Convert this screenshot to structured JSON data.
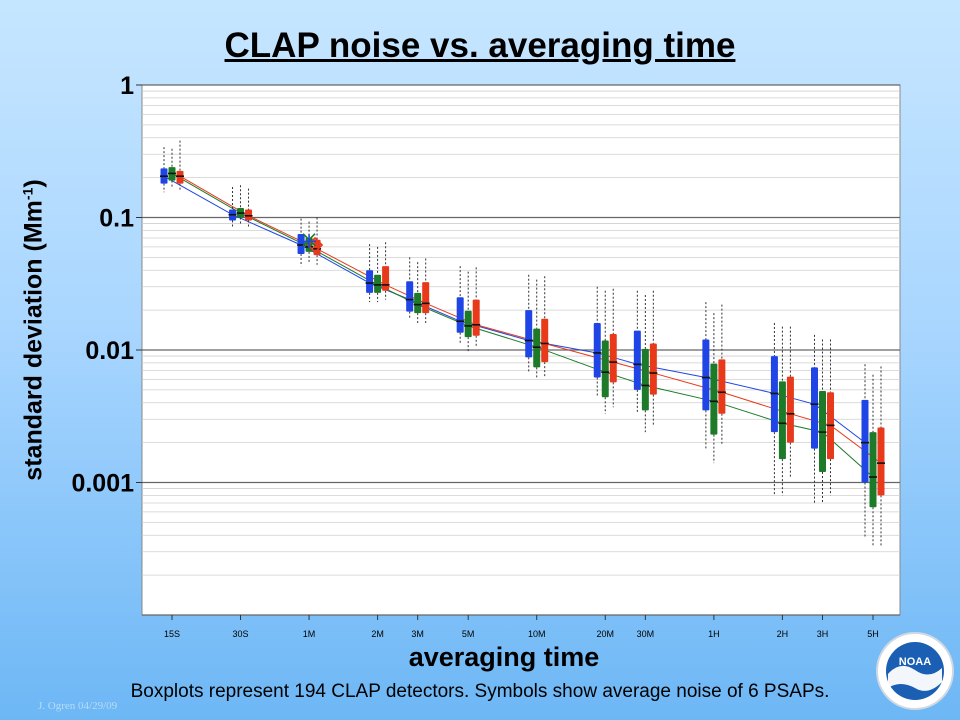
{
  "title": "CLAP noise vs. averaging time",
  "xlabel": "averaging time",
  "ylabel_main": "standard deviation (Mm",
  "ylabel_sup": "-1",
  "ylabel_end": ")",
  "caption": "Boxplots represent 194 CLAP detectors.  Symbols show average noise of 6 PSAPs.",
  "credit": "J. Ogren  04/29/09",
  "logo_text": "NOAA",
  "colors": {
    "blue": "#1f45e6",
    "green": "#1c7a28",
    "red": "#e8391b",
    "background_top": "#c6e6ff",
    "background_bottom": "#6db7f5",
    "plot_bg": "#ffffff"
  },
  "chart_data": {
    "type": "boxplot",
    "y_scale": "log",
    "ylim": [
      0.0001,
      1
    ],
    "y_ticks": [
      {
        "value": 1,
        "label": "1"
      },
      {
        "value": 0.1,
        "label": "0.1"
      },
      {
        "value": 0.01,
        "label": "0.01"
      },
      {
        "value": 0.001,
        "label": "0.001"
      }
    ],
    "grid": true,
    "categories": [
      {
        "label": "15S",
        "seconds": 15
      },
      {
        "label": "30S",
        "seconds": 30
      },
      {
        "label": "1M",
        "seconds": 60
      },
      {
        "label": "2M",
        "seconds": 120
      },
      {
        "label": "3M",
        "seconds": 180
      },
      {
        "label": "5M",
        "seconds": 300
      },
      {
        "label": "10M",
        "seconds": 600
      },
      {
        "label": "20M",
        "seconds": 1200
      },
      {
        "label": "30M",
        "seconds": 1800
      },
      {
        "label": "1H",
        "seconds": 3600
      },
      {
        "label": "2H",
        "seconds": 7200
      },
      {
        "label": "3H",
        "seconds": 10800
      },
      {
        "label": "5H",
        "seconds": 18000
      }
    ],
    "series": [
      {
        "color": "blue",
        "boxes": [
          {
            "lo": 0.155,
            "q1": 0.18,
            "med": 0.205,
            "q3": 0.235,
            "hi": 0.34
          },
          {
            "lo": 0.085,
            "q1": 0.095,
            "med": 0.105,
            "q3": 0.115,
            "hi": 0.17
          },
          {
            "lo": 0.043,
            "q1": 0.053,
            "med": 0.062,
            "q3": 0.075,
            "hi": 0.098
          },
          {
            "lo": 0.023,
            "q1": 0.027,
            "med": 0.032,
            "q3": 0.04,
            "hi": 0.063
          },
          {
            "lo": 0.017,
            "q1": 0.0195,
            "med": 0.024,
            "q3": 0.033,
            "hi": 0.05
          },
          {
            "lo": 0.011,
            "q1": 0.0135,
            "med": 0.0165,
            "q3": 0.025,
            "hi": 0.043
          },
          {
            "lo": 0.0068,
            "q1": 0.0088,
            "med": 0.0118,
            "q3": 0.02,
            "hi": 0.037
          },
          {
            "lo": 0.0045,
            "q1": 0.0062,
            "med": 0.0095,
            "q3": 0.016,
            "hi": 0.03
          },
          {
            "lo": 0.0033,
            "q1": 0.005,
            "med": 0.0078,
            "q3": 0.014,
            "hi": 0.028
          },
          {
            "lo": 0.0018,
            "q1": 0.0035,
            "med": 0.0062,
            "q3": 0.012,
            "hi": 0.023
          },
          {
            "lo": 0.0008,
            "q1": 0.0024,
            "med": 0.0047,
            "q3": 0.009,
            "hi": 0.016
          },
          {
            "lo": 0.0007,
            "q1": 0.0018,
            "med": 0.0039,
            "q3": 0.0074,
            "hi": 0.013
          },
          {
            "lo": 0.00038,
            "q1": 0.001,
            "med": 0.002,
            "q3": 0.0042,
            "hi": 0.0078
          }
        ]
      },
      {
        "color": "green",
        "boxes": [
          {
            "lo": 0.165,
            "q1": 0.19,
            "med": 0.215,
            "q3": 0.24,
            "hi": 0.33
          },
          {
            "lo": 0.087,
            "q1": 0.1,
            "med": 0.108,
            "q3": 0.118,
            "hi": 0.175
          },
          {
            "lo": 0.045,
            "q1": 0.055,
            "med": 0.06,
            "q3": 0.07,
            "hi": 0.093
          },
          {
            "lo": 0.023,
            "q1": 0.027,
            "med": 0.031,
            "q3": 0.037,
            "hi": 0.06
          },
          {
            "lo": 0.016,
            "q1": 0.019,
            "med": 0.022,
            "q3": 0.027,
            "hi": 0.046
          },
          {
            "lo": 0.0098,
            "q1": 0.0125,
            "med": 0.0152,
            "q3": 0.0198,
            "hi": 0.039
          },
          {
            "lo": 0.006,
            "q1": 0.0074,
            "med": 0.0105,
            "q3": 0.0145,
            "hi": 0.034
          },
          {
            "lo": 0.0033,
            "q1": 0.0044,
            "med": 0.0068,
            "q3": 0.0118,
            "hi": 0.028
          },
          {
            "lo": 0.0024,
            "q1": 0.0035,
            "med": 0.0054,
            "q3": 0.0102,
            "hi": 0.026
          },
          {
            "lo": 0.0014,
            "q1": 0.0023,
            "med": 0.0041,
            "q3": 0.0079,
            "hi": 0.019
          },
          {
            "lo": 0.0008,
            "q1": 0.0015,
            "med": 0.0028,
            "q3": 0.0058,
            "hi": 0.015
          },
          {
            "lo": 0.0007,
            "q1": 0.0012,
            "med": 0.0024,
            "q3": 0.0049,
            "hi": 0.012
          },
          {
            "lo": 0.00033,
            "q1": 0.00065,
            "med": 0.0011,
            "q3": 0.0024,
            "hi": 0.0065
          }
        ]
      },
      {
        "color": "red",
        "boxes": [
          {
            "lo": 0.16,
            "q1": 0.18,
            "med": 0.205,
            "q3": 0.225,
            "hi": 0.38
          },
          {
            "lo": 0.085,
            "q1": 0.095,
            "med": 0.103,
            "q3": 0.115,
            "hi": 0.165
          },
          {
            "lo": 0.044,
            "q1": 0.052,
            "med": 0.058,
            "q3": 0.068,
            "hi": 0.1
          },
          {
            "lo": 0.024,
            "q1": 0.028,
            "med": 0.031,
            "q3": 0.043,
            "hi": 0.065
          },
          {
            "lo": 0.016,
            "q1": 0.019,
            "med": 0.0225,
            "q3": 0.0325,
            "hi": 0.049
          },
          {
            "lo": 0.0105,
            "q1": 0.0128,
            "med": 0.0155,
            "q3": 0.024,
            "hi": 0.042
          },
          {
            "lo": 0.0062,
            "q1": 0.0081,
            "med": 0.0112,
            "q3": 0.0172,
            "hi": 0.036
          },
          {
            "lo": 0.0037,
            "q1": 0.0057,
            "med": 0.0081,
            "q3": 0.0132,
            "hi": 0.029
          },
          {
            "lo": 0.0027,
            "q1": 0.0046,
            "med": 0.0067,
            "q3": 0.0112,
            "hi": 0.028
          },
          {
            "lo": 0.0019,
            "q1": 0.0033,
            "med": 0.0048,
            "q3": 0.0085,
            "hi": 0.022
          },
          {
            "lo": 0.0011,
            "q1": 0.002,
            "med": 0.0033,
            "q3": 0.0063,
            "hi": 0.015
          },
          {
            "lo": 0.0008,
            "q1": 0.0015,
            "med": 0.0027,
            "q3": 0.0048,
            "hi": 0.012
          },
          {
            "lo": 0.00033,
            "q1": 0.0008,
            "med": 0.0014,
            "q3": 0.0026,
            "hi": 0.0075
          }
        ]
      }
    ],
    "psap_symbols": [
      {
        "category": "1M",
        "value": 0.062,
        "marker": "diamond",
        "color": "red"
      },
      {
        "category": "1M",
        "value": 0.068,
        "marker": "cross",
        "color": "green"
      },
      {
        "category": "1M",
        "value": 0.066,
        "marker": "plus",
        "color": "blue"
      }
    ]
  }
}
